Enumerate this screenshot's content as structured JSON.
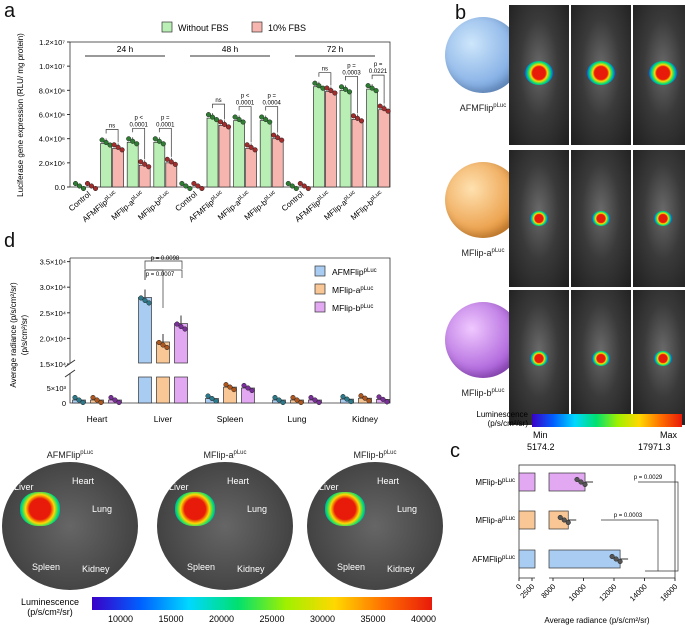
{
  "panels": {
    "a": "a",
    "b": "b",
    "c": "c",
    "d": "d"
  },
  "chart_data": [
    {
      "id": "a",
      "type": "bar",
      "ylabel": "Luciferase gene expression (RLU/ mg protein)",
      "ylim": [
        0,
        12000000
      ],
      "yticks": [
        "0.0",
        "2.0×10⁶",
        "4.0×10⁶",
        "6.0×10⁶",
        "8.0×10⁶",
        "1.0×10⁷",
        "1.2×10⁷"
      ],
      "categories": [
        "Control",
        "AFMFlip",
        "MFlip-a",
        "MFlip-b",
        "Control",
        "AFMFlip",
        "MFlip-a",
        "MFlip-b",
        "Control",
        "AFMFlip",
        "MFlip-a",
        "MFlip-b"
      ],
      "category_sup": [
        "",
        "pLuc",
        "pLuc",
        "pLuc",
        "",
        "pLuc",
        "pLuc",
        "pLuc",
        "",
        "pLuc",
        "pLuc",
        "pLuc"
      ],
      "time_groups": [
        "24 h",
        "48 h",
        "72 h"
      ],
      "legend_position": "top",
      "series": [
        {
          "name": "Without FBS",
          "color": "#b9efb4",
          "dot": "#2e7d32",
          "values": [
            0,
            3600000,
            3700000,
            3700000,
            0,
            5700000,
            5500000,
            5500000,
            0,
            8300000,
            8000000,
            8100000
          ]
        },
        {
          "name": "10% FBS",
          "color": "#f7b5b0",
          "dot": "#a32c2c",
          "values": [
            0,
            3200000,
            1800000,
            2000000,
            0,
            5100000,
            3200000,
            4000000,
            0,
            7900000,
            5600000,
            6400000
          ]
        }
      ],
      "annotations": [
        "ns",
        "p < 0.0001",
        "p = 0.0001",
        "ns",
        "p < 0.0001",
        "p = 0.0004",
        "ns",
        "p = 0.0003",
        "p = 0.0221"
      ]
    },
    {
      "id": "d",
      "type": "bar",
      "ylabel": "Average radiance (p/s/cm²/sr)",
      "ylim": [
        0,
        35000
      ],
      "axis_break": [
        7000,
        15000
      ],
      "yticks_low": [
        "0",
        "5×10³"
      ],
      "yticks_high": [
        "1.5×10⁴",
        "2.0×10⁴",
        "2.5×10⁴",
        "3.0×10⁴",
        "3.5×10⁴"
      ],
      "categories": [
        "Heart",
        "Liver",
        "Spleen",
        "Lung",
        "Kidney"
      ],
      "legend_position": "top-right",
      "series": [
        {
          "name": "AFMFlip",
          "sup": "pLuc",
          "color": "#a9cdf2",
          "dot": "#2a7a8c",
          "values": [
            1000,
            28000,
            1500,
            1000,
            1300
          ]
        },
        {
          "name": "MFlip-a",
          "sup": "pLuc",
          "color": "#f9c795",
          "dot": "#b0561c",
          "values": [
            1000,
            19300,
            5300,
            1000,
            1600
          ]
        },
        {
          "name": "MFlip-b",
          "sup": "pLuc",
          "color": "#e2a8f2",
          "dot": "#7b2d9c",
          "values": [
            1000,
            22900,
            5000,
            1000,
            1200
          ]
        }
      ],
      "annotations": [
        "p = 0.0098",
        "p = 0.0007"
      ]
    },
    {
      "id": "c",
      "type": "bar",
      "orientation": "horizontal",
      "xlabel": "Average radiance (p/s/cm²/sr)",
      "xlim": [
        0,
        16000
      ],
      "axis_break": [
        2500,
        8000
      ],
      "xticks": [
        "0",
        "2500",
        "8000",
        "10000",
        "12000",
        "14000",
        "16000"
      ],
      "categories": [
        "MFlip-b",
        "MFlip-a",
        "AFMFlip"
      ],
      "category_sup": [
        "pLuc",
        "pLuc",
        "pLuc"
      ],
      "colors": [
        "#e2a8f2",
        "#f9c795",
        "#a9cdf2"
      ],
      "values": [
        10100,
        9000,
        12400
      ],
      "annotations": [
        "p = 0.0029",
        "p = 0.0003"
      ]
    }
  ],
  "panel_b": {
    "labels": [
      "AFMFlip",
      "MFlip-a",
      "MFlip-b"
    ],
    "sup": "pLuc",
    "colorbar": {
      "title": "Luminescence",
      "unit": "(p/s/cm²/sr)",
      "min_label": "Min",
      "max_label": "Max",
      "min": "5174.2",
      "max": "17971.3"
    }
  },
  "organs": {
    "titles": [
      "AFMFlip",
      "MFlip-a",
      "MFlip-b"
    ],
    "sup": "pLuc",
    "names": [
      "Liver",
      "Heart",
      "Lung",
      "Spleen",
      "Kidney"
    ],
    "colorbar": {
      "title": "Luminescence",
      "unit": "(p/s/cm²/sr)",
      "ticks": [
        "10000",
        "15000",
        "20000",
        "25000",
        "30000",
        "35000",
        "40000"
      ]
    }
  }
}
